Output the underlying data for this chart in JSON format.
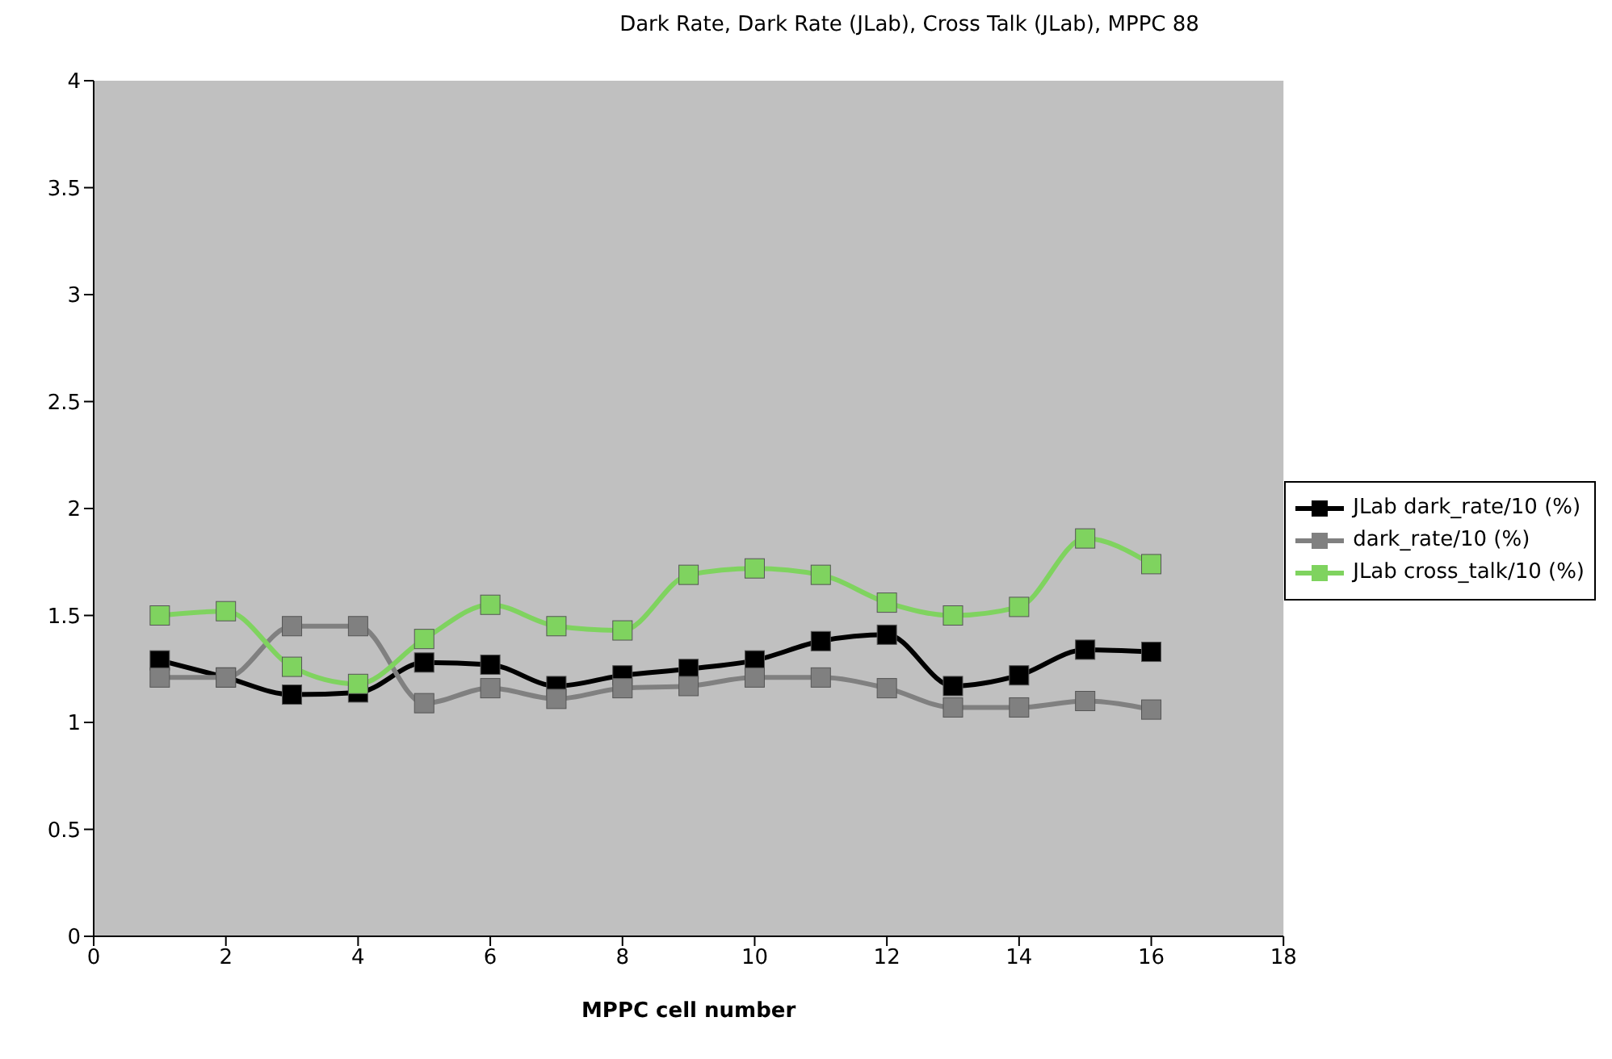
{
  "chart_data": {
    "type": "line",
    "title": "Dark Rate, Dark Rate (JLab), Cross Talk (JLab), MPPC 88",
    "xlabel": "MPPC cell number",
    "x": [
      1,
      2,
      3,
      4,
      5,
      6,
      7,
      8,
      9,
      10,
      11,
      12,
      13,
      14,
      15,
      16
    ],
    "series": [
      {
        "name": "JLab dark_rate/10 (%)",
        "color": "#000000",
        "values": [
          1.29,
          1.21,
          1.13,
          1.14,
          1.28,
          1.27,
          1.17,
          1.22,
          1.25,
          1.29,
          1.38,
          1.41,
          1.17,
          1.22,
          1.34,
          1.33
        ]
      },
      {
        "name": "dark_rate/10 (%)",
        "color": "#808080",
        "values": [
          1.21,
          1.21,
          1.45,
          1.45,
          1.09,
          1.16,
          1.11,
          1.16,
          1.17,
          1.21,
          1.21,
          1.16,
          1.07,
          1.07,
          1.1,
          1.06
        ]
      },
      {
        "name": "JLab cross_talk/10 (%)",
        "color": "#7fd35f",
        "values": [
          1.5,
          1.52,
          1.26,
          1.18,
          1.39,
          1.55,
          1.45,
          1.43,
          1.69,
          1.72,
          1.69,
          1.56,
          1.5,
          1.54,
          1.86,
          1.74
        ]
      }
    ],
    "xlim": [
      0,
      18
    ],
    "xticks": [
      0,
      2,
      4,
      6,
      8,
      10,
      12,
      14,
      16,
      18
    ],
    "ylim": [
      0,
      4
    ],
    "yticks": [
      0,
      0.5,
      1,
      1.5,
      2,
      2.5,
      3,
      3.5,
      4
    ],
    "grid": false,
    "legend": "right",
    "marker": "square",
    "line_style": "solid"
  }
}
